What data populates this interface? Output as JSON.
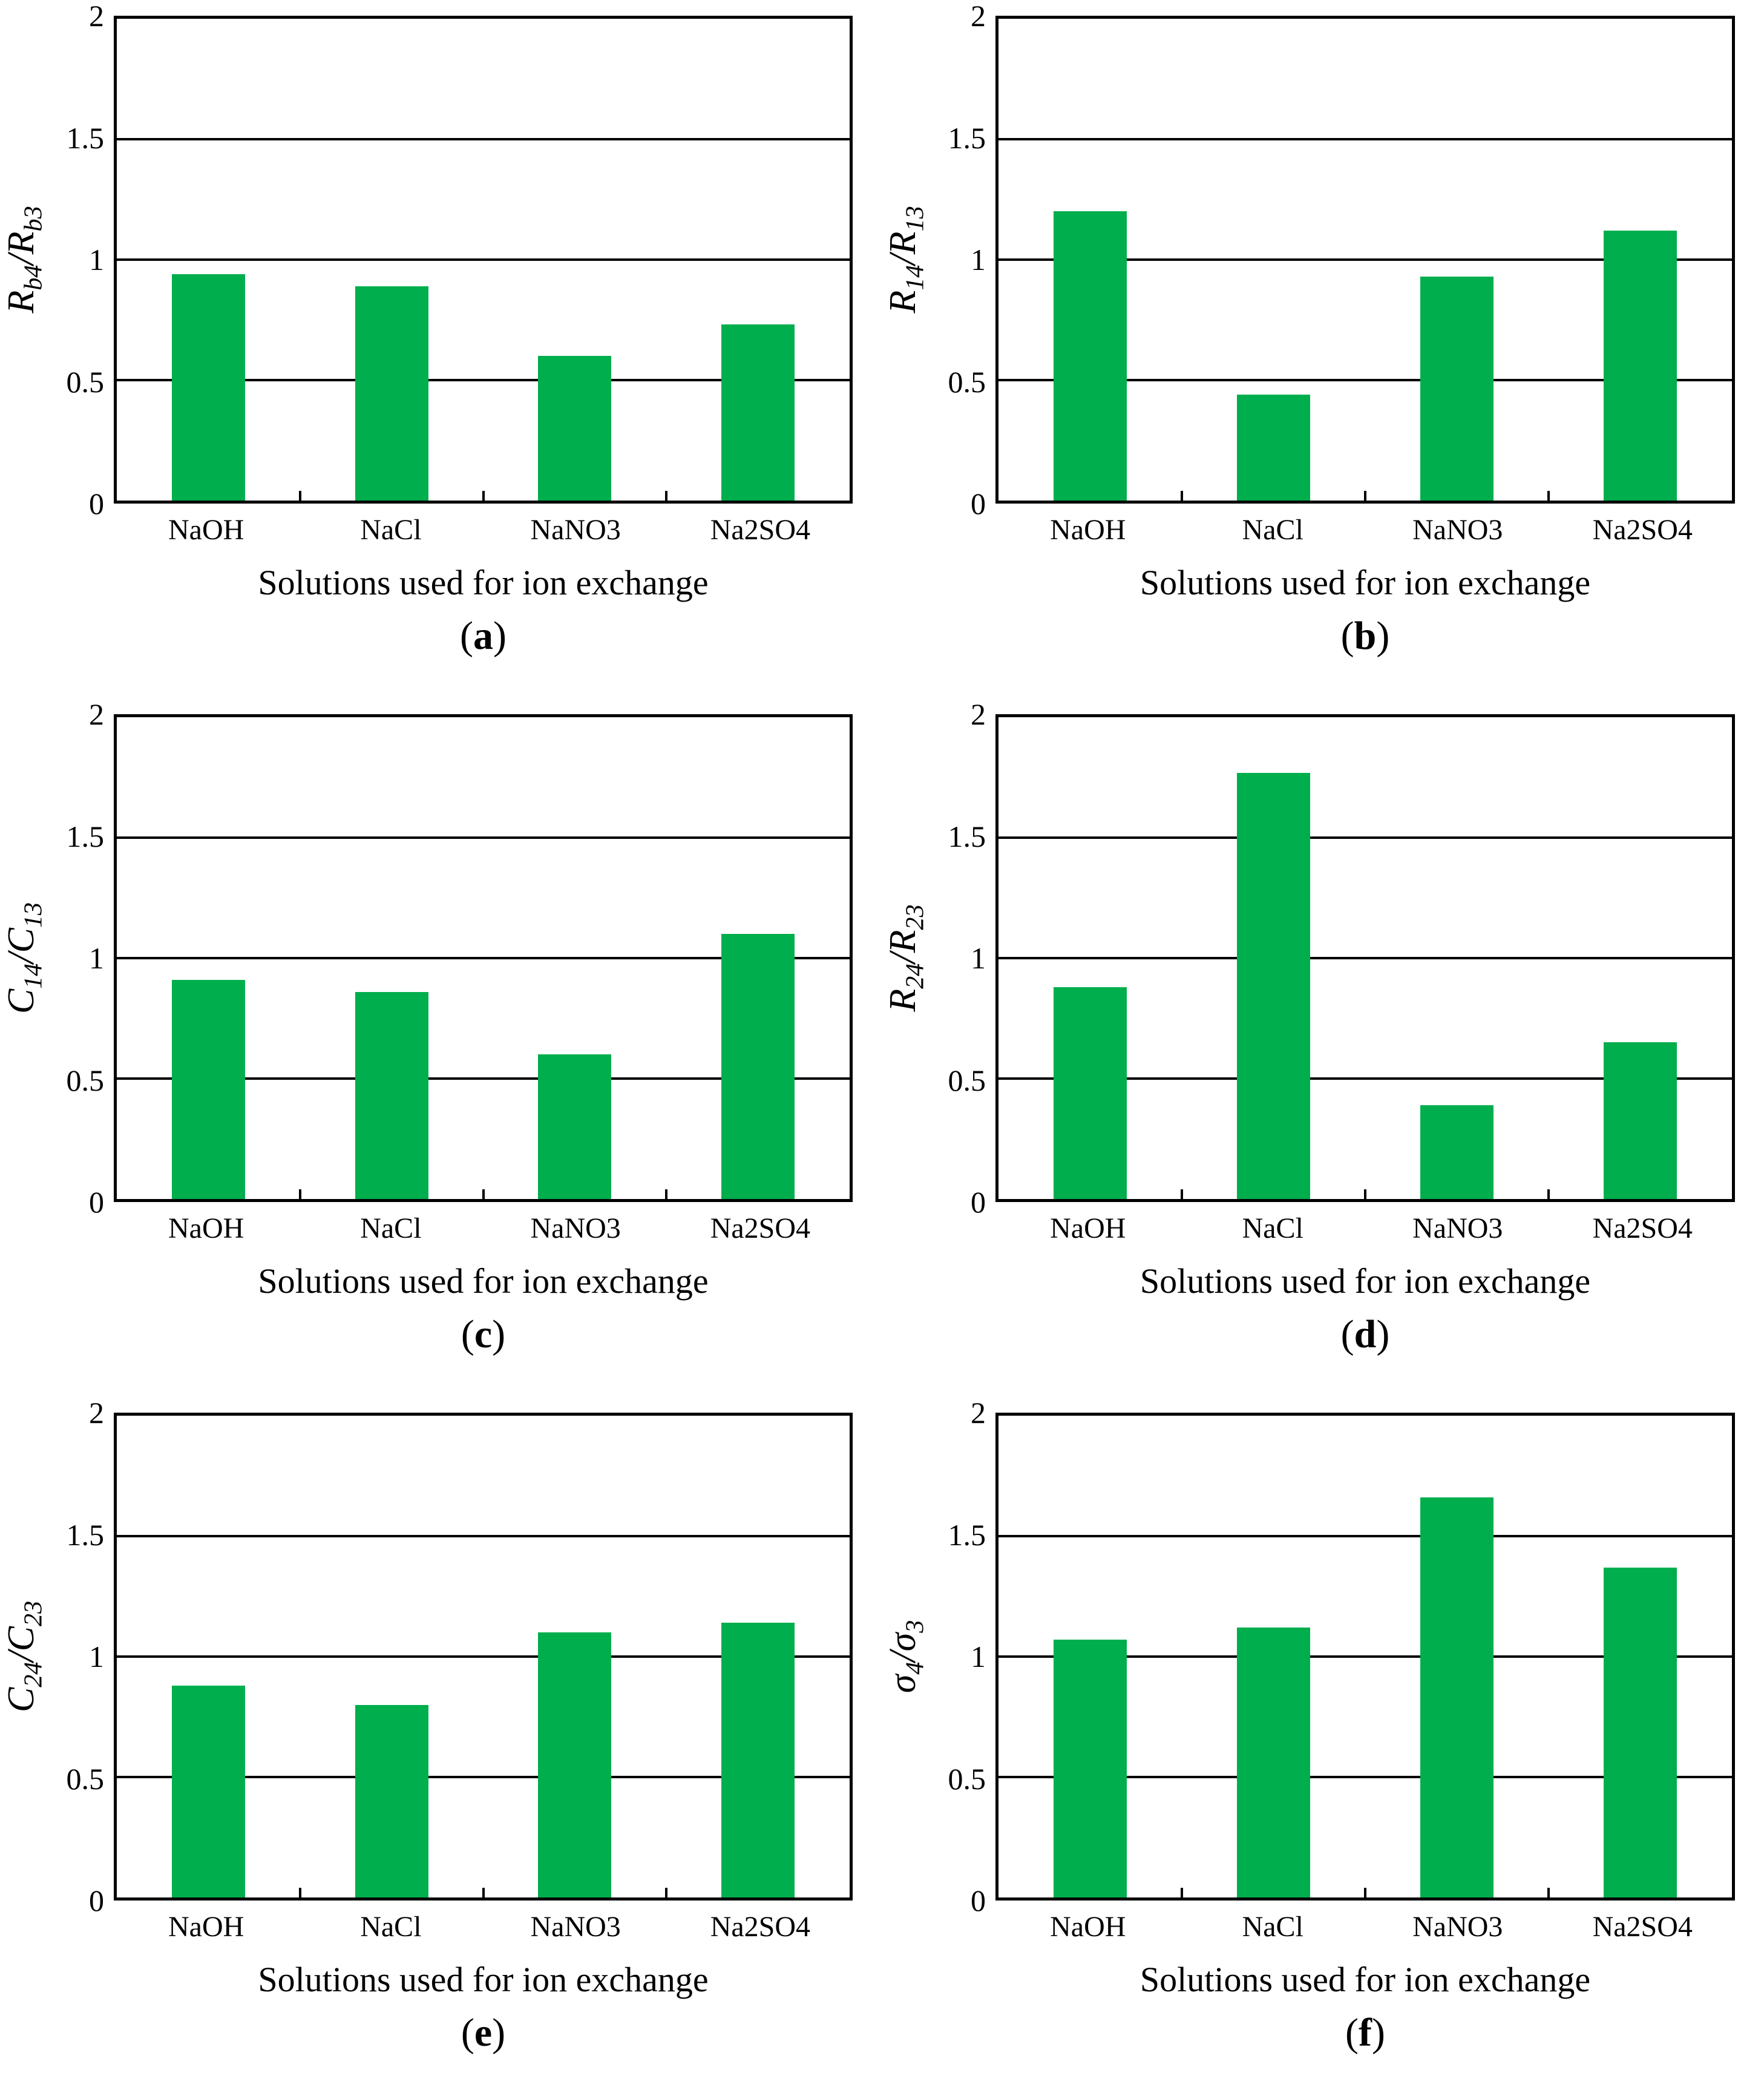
{
  "figure": {
    "background_color": "#ffffff",
    "bar_color": "#00AE4D",
    "axis_color": "#000000",
    "x_axis_title": "Solutions used for ion exchange",
    "categories": [
      "NaOH",
      "NaCl",
      "NaNO3",
      "Na2SO4"
    ],
    "y_tick_labels": [
      "2",
      "1.5",
      "1",
      "0.5",
      "0"
    ]
  },
  "chart_data": [
    {
      "type": "bar",
      "panel_label": {
        "open": "(",
        "letter": "a",
        "close": ")"
      },
      "ylabel": {
        "num_base": "R",
        "num_sub": "b4",
        "slash": "/",
        "den_base": "R",
        "den_sub": "b3"
      },
      "ylabel_text": "Rb4/Rb3",
      "xlabel": "Solutions used for ion exchange",
      "categories": [
        "NaOH",
        "NaCl",
        "NaNO3",
        "Na2SO4"
      ],
      "values": [
        0.94,
        0.89,
        0.6,
        0.73
      ],
      "ylim": [
        0,
        2
      ],
      "yticks": [
        0,
        0.5,
        1,
        1.5,
        2
      ],
      "gridlines": [
        0.5,
        1.0,
        1.5
      ],
      "legend": "none",
      "bar_color": "#00AE4D"
    },
    {
      "type": "bar",
      "panel_label": {
        "open": "(",
        "letter": "b",
        "close": ")"
      },
      "ylabel": {
        "num_base": "R",
        "num_sub": "14",
        "slash": "/",
        "den_base": "R",
        "den_sub": "13"
      },
      "ylabel_text": "R14/R13",
      "xlabel": "Solutions used for ion exchange",
      "categories": [
        "NaOH",
        "NaCl",
        "NaNO3",
        "Na2SO4"
      ],
      "values": [
        1.2,
        0.44,
        0.93,
        1.12
      ],
      "ylim": [
        0,
        2
      ],
      "yticks": [
        0,
        0.5,
        1,
        1.5,
        2
      ],
      "gridlines": [
        0.5,
        1.0,
        1.5
      ],
      "legend": "none",
      "bar_color": "#00AE4D"
    },
    {
      "type": "bar",
      "panel_label": {
        "open": "(",
        "letter": "c",
        "close": ")"
      },
      "ylabel": {
        "num_base": "C",
        "num_sub": "14",
        "slash": "/",
        "den_base": "C",
        "den_sub": "13"
      },
      "ylabel_text": "C14/C13",
      "xlabel": "Solutions used for ion exchange",
      "categories": [
        "NaOH",
        "NaCl",
        "NaNO3",
        "Na2SO4"
      ],
      "values": [
        0.91,
        0.86,
        0.6,
        1.1
      ],
      "ylim": [
        0,
        2
      ],
      "yticks": [
        0,
        0.5,
        1,
        1.5,
        2
      ],
      "gridlines": [
        0.5,
        1.0,
        1.5
      ],
      "legend": "none",
      "bar_color": "#00AE4D"
    },
    {
      "type": "bar",
      "panel_label": {
        "open": "(",
        "letter": "d",
        "close": ")"
      },
      "ylabel": {
        "num_base": "R",
        "num_sub": "24",
        "slash": "/",
        "den_base": "R",
        "den_sub": "23"
      },
      "ylabel_text": "R24/R23",
      "xlabel": "Solutions used for ion exchange",
      "categories": [
        "NaOH",
        "NaCl",
        "NaNO3",
        "Na2SO4"
      ],
      "values": [
        0.88,
        1.77,
        0.39,
        0.65
      ],
      "ylim": [
        0,
        2
      ],
      "yticks": [
        0,
        0.5,
        1,
        1.5,
        2
      ],
      "gridlines": [
        0.5,
        1.0,
        1.5
      ],
      "legend": "none",
      "bar_color": "#00AE4D"
    },
    {
      "type": "bar",
      "panel_label": {
        "open": "(",
        "letter": "e",
        "close": ")"
      },
      "ylabel": {
        "num_base": "C",
        "num_sub": "24",
        "slash": "/",
        "den_base": "C",
        "den_sub": "23"
      },
      "ylabel_text": "C24/C23",
      "xlabel": "Solutions used for ion exchange",
      "categories": [
        "NaOH",
        "NaCl",
        "NaNO3",
        "Na2SO4"
      ],
      "values": [
        0.88,
        0.8,
        1.1,
        1.14
      ],
      "ylim": [
        0,
        2
      ],
      "yticks": [
        0,
        0.5,
        1,
        1.5,
        2
      ],
      "gridlines": [
        0.5,
        1.0,
        1.5
      ],
      "legend": "none",
      "bar_color": "#00AE4D"
    },
    {
      "type": "bar",
      "panel_label": {
        "open": "(",
        "letter": "f",
        "close": ")"
      },
      "ylabel": {
        "num_base": "σ",
        "num_sub": "4",
        "slash": "/",
        "den_base": "σ",
        "den_sub": "3"
      },
      "ylabel_text": "σ4/σ3",
      "xlabel": "Solutions used for ion exchange",
      "categories": [
        "NaOH",
        "NaCl",
        "NaNO3",
        "Na2SO4"
      ],
      "values": [
        1.07,
        1.12,
        1.66,
        1.37
      ],
      "ylim": [
        0,
        2
      ],
      "yticks": [
        0,
        0.5,
        1,
        1.5,
        2
      ],
      "gridlines": [
        0.5,
        1.0,
        1.5
      ],
      "legend": "none",
      "bar_color": "#00AE4D"
    }
  ]
}
